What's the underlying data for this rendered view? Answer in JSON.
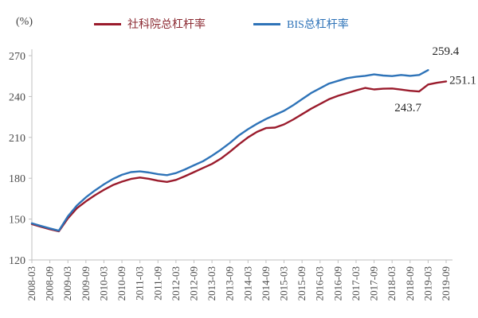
{
  "chart_data": {
    "type": "line",
    "title": "",
    "unit_label": "(%)",
    "ylabel": "(%)",
    "xlabel": "",
    "grid": false,
    "legend_position": "top",
    "ylim": [
      120,
      270
    ],
    "y_ticks": [
      120,
      150,
      180,
      210,
      240,
      270
    ],
    "x_frequency": "quarterly",
    "x_start": "2008-03",
    "x_tick_labels": [
      "2008-03",
      "2008-09",
      "2009-03",
      "2009-09",
      "2010-03",
      "2010-09",
      "2011-03",
      "2011-09",
      "2012-03",
      "2012-09",
      "2013-03",
      "2013-09",
      "2014-03",
      "2014-09",
      "2015-03",
      "2015-09",
      "2016-03",
      "2016-09",
      "2017-03",
      "2017-09",
      "2018-03",
      "2018-09",
      "2019-03",
      "2019-09"
    ],
    "series": [
      {
        "name": "社科院总杠杆率",
        "color": "#9a1b2c",
        "text_color": "#8c2b33",
        "values": [
          146.4,
          144.4,
          142.6,
          141.0,
          150.5,
          158.0,
          163.0,
          167.5,
          171.5,
          175.0,
          177.5,
          179.5,
          180.5,
          179.6,
          178.2,
          177.3,
          178.8,
          181.5,
          184.5,
          187.5,
          190.5,
          194.5,
          199.5,
          205.0,
          210.0,
          214.0,
          216.8,
          217.2,
          219.5,
          223.0,
          227.0,
          231.0,
          234.5,
          238.0,
          240.5,
          242.5,
          244.5,
          246.3,
          245.2,
          245.7,
          245.9,
          245.1,
          244.2,
          243.7,
          248.8,
          250.1,
          251.1
        ]
      },
      {
        "name": "BIS总杠杆率",
        "color": "#2e73b8",
        "text_color": "#2e73b8",
        "values": [
          146.9,
          145.0,
          143.2,
          141.5,
          152.0,
          160.0,
          166.0,
          171.0,
          175.5,
          179.5,
          182.5,
          184.5,
          185.0,
          184.2,
          183.0,
          182.3,
          183.8,
          186.5,
          189.5,
          192.5,
          196.5,
          201.0,
          206.0,
          211.5,
          216.0,
          220.0,
          223.5,
          226.5,
          229.5,
          233.5,
          238.0,
          242.5,
          246.0,
          249.5,
          251.5,
          253.5,
          254.5,
          255.2,
          256.2,
          255.4,
          255.0,
          255.8,
          255.2,
          255.8,
          259.4
        ]
      }
    ],
    "annotations": [
      {
        "text": "259.4",
        "series_index": 1,
        "point_index": 44,
        "offset": [
          22,
          -19
        ]
      },
      {
        "text": "251.1",
        "series_index": 0,
        "point_index": 46,
        "offset": [
          21,
          3
        ]
      },
      {
        "text": "243.7",
        "series_index": 0,
        "point_index": 43,
        "offset": [
          -14,
          25
        ]
      }
    ]
  },
  "legend": {
    "items": [
      {
        "label": "社科院总杠杆率"
      },
      {
        "label": "BIS总杠杆率"
      }
    ]
  },
  "style_colors": {
    "axis_line": "#bfbfbf",
    "tick_label": "#4d4d4d",
    "annotation_text": "#262626"
  }
}
